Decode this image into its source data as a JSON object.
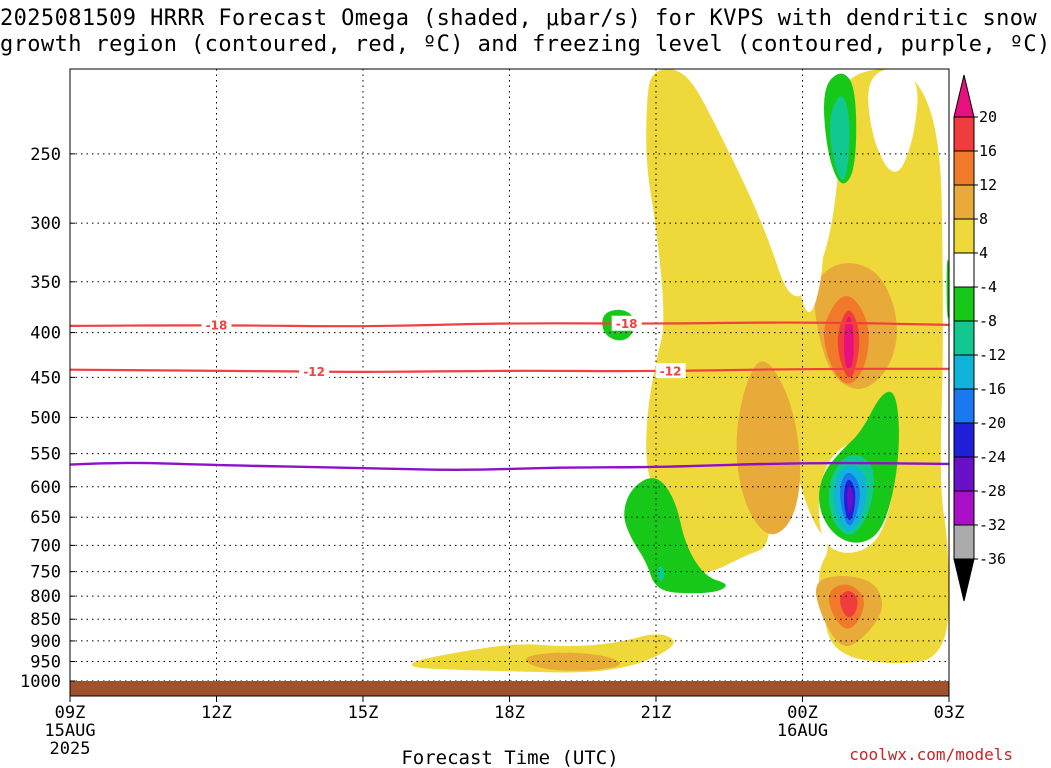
{
  "title": {
    "line1": "2025081509 HRRR Forecast Omega (shaded, μbar/s) for KVPS with dendritic snow",
    "line2": "growth region (contoured, red, ºC) and freezing level (contoured, purple, ºC)"
  },
  "chart_data": {
    "type": "heatmap",
    "title": "2025081509 HRRR Forecast Omega (shaded, μbar/s) for KVPS with dendritic snow growth region (contoured, red, ºC) and freezing level (contoured, purple, ºC)",
    "xlabel": "Forecast Time (UTC)",
    "ylabel": "",
    "x_ticks": [
      {
        "hour": 0,
        "label": "09Z",
        "sub1": "15AUG",
        "sub2": "2025"
      },
      {
        "hour": 3,
        "label": "12Z"
      },
      {
        "hour": 6,
        "label": "15Z"
      },
      {
        "hour": 9,
        "label": "18Z"
      },
      {
        "hour": 12,
        "label": "21Z"
      },
      {
        "hour": 15,
        "label": "00Z",
        "sub1": "16AUG"
      },
      {
        "hour": 18,
        "label": "03Z"
      }
    ],
    "y_ticks": [
      250,
      300,
      350,
      400,
      450,
      500,
      550,
      600,
      650,
      700,
      750,
      800,
      850,
      900,
      950,
      1000
    ],
    "y_range_hPa": [
      200,
      1000
    ],
    "y_scale": "log",
    "grid": true,
    "ground_color": "#a0522d",
    "colorbar": {
      "ticks": [
        "20",
        "16",
        "12",
        "8",
        "4",
        "-4",
        "-8",
        "-12",
        "-16",
        "-20",
        "-24",
        "-28",
        "-32",
        "-36"
      ],
      "colors": [
        "#e8107e",
        "#f03c3c",
        "#f07a2a",
        "#e8aa38",
        "#eed83a",
        "#ffffff",
        "#18c818",
        "#10c890",
        "#10b4d8",
        "#1a78f0",
        "#2020d8",
        "#6a10c8",
        "#a810c8",
        "#aaaaaa",
        "#000000"
      ]
    },
    "contours": [
      {
        "type": "temperature",
        "label": "-18",
        "color": "#f04040",
        "points": [
          [
            0,
            393
          ],
          [
            3,
            392
          ],
          [
            6,
            394
          ],
          [
            9,
            390
          ],
          [
            12,
            391
          ],
          [
            15,
            389
          ],
          [
            18,
            392
          ]
        ]
      },
      {
        "type": "temperature",
        "label": "-12",
        "color": "#f04040",
        "points": [
          [
            0,
            441
          ],
          [
            3,
            442
          ],
          [
            6,
            444
          ],
          [
            9,
            442
          ],
          [
            12,
            443
          ],
          [
            15,
            440
          ],
          [
            18,
            440
          ]
        ]
      },
      {
        "type": "freezing_level",
        "label": "",
        "color": "#9010c8",
        "points": [
          [
            0,
            566
          ],
          [
            1,
            562
          ],
          [
            3,
            567
          ],
          [
            6,
            571
          ],
          [
            8,
            575
          ],
          [
            10,
            570
          ],
          [
            12,
            570
          ],
          [
            15,
            563
          ],
          [
            18,
            565
          ]
        ]
      }
    ],
    "omega_regions": [
      {
        "value": 4,
        "color": "#eed83a",
        "points": [
          [
            11.8,
            220
          ],
          [
            11.9,
            200
          ],
          [
            12.6,
            200
          ],
          [
            13.2,
            230
          ],
          [
            14.2,
            300
          ],
          [
            14.8,
            380
          ],
          [
            15.5,
            330
          ],
          [
            15.8,
            250
          ],
          [
            15.7,
            200
          ],
          [
            17.8,
            200
          ],
          [
            17.9,
            400
          ],
          [
            17.8,
            600
          ],
          [
            18,
            700
          ],
          [
            18,
            940
          ],
          [
            16.8,
            960
          ],
          [
            15.6,
            930
          ],
          [
            15.4,
            820
          ],
          [
            15.3,
            750
          ],
          [
            15.6,
            700
          ],
          [
            15.2,
            660
          ],
          [
            14.8,
            560
          ],
          [
            14.6,
            480
          ],
          [
            14.6,
            450
          ],
          [
            14.2,
            560
          ],
          [
            14.4,
            700
          ],
          [
            13.8,
            720
          ],
          [
            13.2,
            750
          ],
          [
            12.5,
            760
          ],
          [
            12.3,
            700
          ],
          [
            12.1,
            620
          ],
          [
            11.8,
            580
          ],
          [
            11.8,
            500
          ],
          [
            12,
            430
          ],
          [
            12.2,
            390
          ],
          [
            12,
            300
          ],
          [
            11.8,
            260
          ]
        ]
      },
      {
        "value": 4,
        "color": "#eed83a",
        "points": [
          [
            7.0,
            950
          ],
          [
            8.0,
            925
          ],
          [
            9.2,
            905
          ],
          [
            10.2,
            915
          ],
          [
            11.2,
            905
          ],
          [
            12.0,
            880
          ],
          [
            12.4,
            895
          ],
          [
            12.3,
            920
          ],
          [
            11.6,
            960
          ],
          [
            10.6,
            980
          ],
          [
            9.0,
            975
          ],
          [
            7.6,
            970
          ],
          [
            7.0,
            965
          ]
        ]
      },
      {
        "value": 8,
        "color": "#e8aa38",
        "points": [
          [
            13.8,
            460
          ],
          [
            14.2,
            420
          ],
          [
            14.8,
            480
          ],
          [
            15.0,
            580
          ],
          [
            14.8,
            660
          ],
          [
            14.3,
            690
          ],
          [
            13.8,
            630
          ],
          [
            13.6,
            540
          ]
        ]
      },
      {
        "value": 8,
        "color": "#e8aa38",
        "points": [
          [
            9.2,
            940
          ],
          [
            10.0,
            925
          ],
          [
            11.0,
            935
          ],
          [
            11.4,
            960
          ],
          [
            10.6,
            975
          ],
          [
            9.6,
            970
          ]
        ]
      },
      {
        "value": 8,
        "color": "#e8aa38",
        "points": [
          [
            15.2,
            350
          ],
          [
            15.8,
            330
          ],
          [
            16.6,
            340
          ],
          [
            17.0,
            390
          ],
          [
            16.8,
            440
          ],
          [
            16.2,
            470
          ],
          [
            15.6,
            450
          ],
          [
            15.3,
            400
          ]
        ]
      },
      {
        "value": 8,
        "color": "#e8aa38",
        "points": [
          [
            15.2,
            770
          ],
          [
            15.8,
            755
          ],
          [
            16.5,
            770
          ],
          [
            16.7,
            830
          ],
          [
            16.2,
            900
          ],
          [
            15.8,
            920
          ],
          [
            15.4,
            850
          ]
        ]
      },
      {
        "value": 12,
        "color": "#f07a2a",
        "points": [
          [
            15.4,
            390
          ],
          [
            15.9,
            355
          ],
          [
            16.4,
            390
          ],
          [
            16.3,
            440
          ],
          [
            15.9,
            465
          ],
          [
            15.5,
            430
          ]
        ]
      },
      {
        "value": 12,
        "color": "#f07a2a",
        "points": [
          [
            15.5,
            790
          ],
          [
            15.9,
            770
          ],
          [
            16.3,
            800
          ],
          [
            16.2,
            850
          ],
          [
            15.9,
            880
          ],
          [
            15.6,
            840
          ]
        ]
      },
      {
        "value": 16,
        "color": "#f03c3c",
        "points": [
          [
            15.7,
            400
          ],
          [
            15.95,
            370
          ],
          [
            16.2,
            400
          ],
          [
            16.1,
            440
          ],
          [
            15.95,
            455
          ],
          [
            15.75,
            430
          ]
        ]
      },
      {
        "value": 16,
        "color": "#f03c3c",
        "points": [
          [
            15.75,
            800
          ],
          [
            15.95,
            785
          ],
          [
            16.15,
            805
          ],
          [
            16.1,
            835
          ],
          [
            15.95,
            850
          ],
          [
            15.8,
            830
          ]
        ]
      },
      {
        "value": 20,
        "color": "#e8107e",
        "points": [
          [
            15.85,
            395
          ],
          [
            15.95,
            380
          ],
          [
            16.05,
            395
          ],
          [
            16.05,
            430
          ],
          [
            15.95,
            445
          ],
          [
            15.85,
            430
          ]
        ]
      },
      {
        "value": -4,
        "color": "#ffffff",
        "points": [
          [
            14.8,
            200
          ],
          [
            15.3,
            200
          ],
          [
            15.2,
            240
          ],
          [
            15.5,
            320
          ],
          [
            15.2,
            390
          ],
          [
            14.9,
            360
          ],
          [
            14.8,
            260
          ]
        ]
      },
      {
        "value": -4,
        "color": "#ffffff",
        "points": [
          [
            15.3,
            620
          ],
          [
            15.5,
            560
          ],
          [
            16.0,
            530
          ],
          [
            16.7,
            540
          ],
          [
            16.9,
            600
          ],
          [
            16.6,
            690
          ],
          [
            16.0,
            720
          ],
          [
            15.4,
            700
          ]
        ]
      },
      {
        "value": -4,
        "color": "#ffffff",
        "points": [
          [
            16.3,
            200
          ],
          [
            17.4,
            200
          ],
          [
            17.3,
            240
          ],
          [
            16.9,
            270
          ],
          [
            16.4,
            240
          ]
        ]
      },
      {
        "value": -8,
        "color": "#18c818",
        "points": [
          [
            15.4,
            210
          ],
          [
            15.8,
            200
          ],
          [
            16.1,
            210
          ],
          [
            16.1,
            260
          ],
          [
            15.8,
            275
          ],
          [
            15.5,
            250
          ]
        ]
      },
      {
        "value": -8,
        "color": "#18c818",
        "points": [
          [
            15.4,
            580
          ],
          [
            15.8,
            545
          ],
          [
            16.2,
            520
          ],
          [
            16.6,
            470
          ],
          [
            16.9,
            465
          ],
          [
            17.0,
            520
          ],
          [
            16.9,
            600
          ],
          [
            16.6,
            680
          ],
          [
            16.1,
            700
          ],
          [
            15.6,
            680
          ],
          [
            15.3,
            630
          ]
        ]
      },
      {
        "value": -8,
        "color": "#18c818",
        "points": [
          [
            11.3,
            645
          ],
          [
            11.5,
            600
          ],
          [
            12.0,
            580
          ],
          [
            12.4,
            620
          ],
          [
            12.6,
            700
          ],
          [
            13.0,
            760
          ],
          [
            13.5,
            775
          ],
          [
            13.3,
            790
          ],
          [
            12.8,
            795
          ],
          [
            12.0,
            790
          ],
          [
            11.8,
            730
          ],
          [
            11.5,
            690
          ]
        ]
      },
      {
        "value": -8,
        "color": "#18c818",
        "points": [
          [
            10.9,
            380
          ],
          [
            11.3,
            375
          ],
          [
            11.6,
            385
          ],
          [
            11.5,
            405
          ],
          [
            11.2,
            410
          ],
          [
            10.9,
            400
          ]
        ]
      },
      {
        "value": -8,
        "color": "#18c818",
        "points": [
          [
            17.95,
            330
          ],
          [
            18,
            330
          ],
          [
            18,
            390
          ],
          [
            17.95,
            380
          ]
        ]
      },
      {
        "value": -12,
        "color": "#10c890",
        "points": [
          [
            15.5,
            230
          ],
          [
            15.8,
            210
          ],
          [
            16.0,
            230
          ],
          [
            15.9,
            270
          ],
          [
            15.7,
            265
          ]
        ]
      },
      {
        "value": -12,
        "color": "#10c890",
        "points": [
          [
            15.5,
            600
          ],
          [
            15.8,
            555
          ],
          [
            16.2,
            550
          ],
          [
            16.5,
            575
          ],
          [
            16.4,
            640
          ],
          [
            16.0,
            690
          ],
          [
            15.6,
            660
          ]
        ]
      },
      {
        "value": -12,
        "color": "#10c890",
        "points": [
          [
            12.0,
            750
          ],
          [
            12.1,
            735
          ],
          [
            12.2,
            755
          ],
          [
            12.1,
            775
          ]
        ]
      },
      {
        "value": -16,
        "color": "#10b4d8",
        "points": [
          [
            15.6,
            600
          ],
          [
            15.85,
            565
          ],
          [
            16.2,
            570
          ],
          [
            16.35,
            600
          ],
          [
            16.2,
            660
          ],
          [
            15.9,
            680
          ],
          [
            15.7,
            650
          ]
        ]
      },
      {
        "value": -20,
        "color": "#1a78f0",
        "points": [
          [
            15.75,
            600
          ],
          [
            15.9,
            575
          ],
          [
            16.1,
            585
          ],
          [
            16.2,
            610
          ],
          [
            16.1,
            650
          ],
          [
            15.95,
            670
          ],
          [
            15.8,
            640
          ]
        ]
      },
      {
        "value": -24,
        "color": "#2020d8",
        "points": [
          [
            15.85,
            600
          ],
          [
            15.95,
            585
          ],
          [
            16.1,
            605
          ],
          [
            16.05,
            645
          ],
          [
            15.95,
            660
          ],
          [
            15.85,
            635
          ]
        ]
      },
      {
        "value": -28,
        "color": "#6a10c8",
        "points": [
          [
            15.9,
            610
          ],
          [
            15.97,
            595
          ],
          [
            16.05,
            615
          ],
          [
            16.0,
            640
          ],
          [
            15.93,
            645
          ]
        ]
      }
    ]
  },
  "footer": {
    "xlabel": "Forecast Time (UTC)",
    "credit": "coolwx.com/models"
  }
}
